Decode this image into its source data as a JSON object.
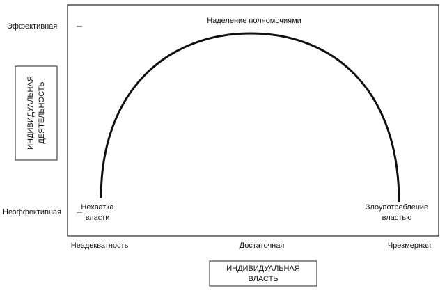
{
  "y_axis": {
    "title_lines": [
      "ИНДИВИДУАЛЬНАЯ",
      "ДЕЯТЕЛЬНОСТЬ"
    ],
    "high": "Эффективная",
    "low": "Неэффективная"
  },
  "x_axis": {
    "title_lines": [
      "ИНДИВИДУАЛЬНАЯ",
      "ВЛАСТЬ"
    ],
    "labels": [
      "Неадекватность",
      "Достаточная",
      "Чрезмерная"
    ]
  },
  "curve": {
    "peak_label": "Наделение полномочиями",
    "left_label_lines": [
      "Нехватка",
      "власти"
    ],
    "right_label_lines": [
      "Злоупотребление",
      "властью"
    ]
  }
}
